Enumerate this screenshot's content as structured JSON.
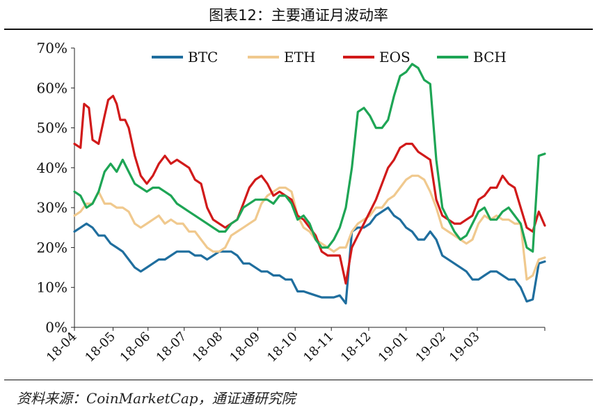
{
  "title": "图表12：主要通证月波动率",
  "source": "资料来源：CoinMarketCap，通证通研究院",
  "chart_data": {
    "type": "line",
    "xlabel": "",
    "ylabel": "",
    "ylim": [
      0,
      70
    ],
    "xlim": [
      0,
      390
    ],
    "x_tick_positions": [
      0,
      32,
      61,
      91,
      121,
      152,
      183,
      213,
      244,
      275,
      306,
      334
    ],
    "x_tick_labels": [
      "18-04",
      "18-05",
      "18-06",
      "18-07",
      "18-08",
      "18-09",
      "18-10",
      "18-11",
      "18-12",
      "19-01",
      "19-02",
      "19-03"
    ],
    "y_ticks": [
      0,
      10,
      20,
      30,
      40,
      50,
      60,
      70
    ],
    "y_tick_labels": [
      "0%",
      "10%",
      "20%",
      "30%",
      "40%",
      "50%",
      "60%",
      "70%"
    ],
    "legend_position": "top",
    "grid": false,
    "series": [
      {
        "name": "BTC",
        "color": "#1F6E9E",
        "points": [
          [
            0,
            24
          ],
          [
            5,
            25
          ],
          [
            10,
            26
          ],
          [
            15,
            25
          ],
          [
            20,
            23
          ],
          [
            25,
            23
          ],
          [
            30,
            21
          ],
          [
            35,
            20
          ],
          [
            40,
            19
          ],
          [
            45,
            17
          ],
          [
            50,
            15
          ],
          [
            55,
            14
          ],
          [
            60,
            15
          ],
          [
            65,
            16
          ],
          [
            70,
            17
          ],
          [
            75,
            17
          ],
          [
            80,
            18
          ],
          [
            85,
            19
          ],
          [
            90,
            19
          ],
          [
            95,
            19
          ],
          [
            100,
            18
          ],
          [
            105,
            18
          ],
          [
            110,
            17
          ],
          [
            115,
            18
          ],
          [
            120,
            19
          ],
          [
            125,
            19
          ],
          [
            130,
            19
          ],
          [
            135,
            18
          ],
          [
            140,
            16
          ],
          [
            145,
            16
          ],
          [
            150,
            15
          ],
          [
            155,
            14
          ],
          [
            160,
            14
          ],
          [
            165,
            13
          ],
          [
            170,
            13
          ],
          [
            175,
            12
          ],
          [
            180,
            12
          ],
          [
            185,
            9
          ],
          [
            190,
            9
          ],
          [
            195,
            8.5
          ],
          [
            200,
            8
          ],
          [
            205,
            7.5
          ],
          [
            210,
            7.5
          ],
          [
            215,
            7.5
          ],
          [
            220,
            8
          ],
          [
            225,
            6
          ],
          [
            230,
            24
          ],
          [
            235,
            25
          ],
          [
            240,
            25
          ],
          [
            245,
            26
          ],
          [
            250,
            28
          ],
          [
            255,
            29
          ],
          [
            260,
            30
          ],
          [
            265,
            28
          ],
          [
            270,
            27
          ],
          [
            275,
            25
          ],
          [
            280,
            24
          ],
          [
            285,
            22
          ],
          [
            290,
            22
          ],
          [
            295,
            24
          ],
          [
            300,
            22
          ],
          [
            305,
            18
          ],
          [
            310,
            17
          ],
          [
            315,
            16
          ],
          [
            320,
            15
          ],
          [
            325,
            14
          ],
          [
            330,
            12
          ],
          [
            335,
            12
          ],
          [
            340,
            13
          ],
          [
            345,
            14
          ],
          [
            350,
            14
          ],
          [
            355,
            13
          ],
          [
            360,
            12
          ],
          [
            365,
            12
          ],
          [
            370,
            10
          ],
          [
            375,
            6.5
          ],
          [
            380,
            7
          ],
          [
            385,
            16
          ],
          [
            390,
            16.5
          ]
        ]
      },
      {
        "name": "ETH",
        "color": "#F0C98E",
        "points": [
          [
            0,
            28
          ],
          [
            5,
            29
          ],
          [
            10,
            31
          ],
          [
            15,
            31
          ],
          [
            20,
            34
          ],
          [
            25,
            31
          ],
          [
            30,
            31
          ],
          [
            35,
            30
          ],
          [
            40,
            30
          ],
          [
            45,
            29
          ],
          [
            50,
            26
          ],
          [
            55,
            25
          ],
          [
            60,
            26
          ],
          [
            65,
            27
          ],
          [
            70,
            28
          ],
          [
            75,
            26
          ],
          [
            80,
            27
          ],
          [
            85,
            26
          ],
          [
            90,
            26
          ],
          [
            95,
            24
          ],
          [
            100,
            24
          ],
          [
            105,
            22
          ],
          [
            110,
            20
          ],
          [
            115,
            19
          ],
          [
            120,
            19
          ],
          [
            125,
            20
          ],
          [
            130,
            23
          ],
          [
            135,
            24
          ],
          [
            140,
            25
          ],
          [
            145,
            26
          ],
          [
            150,
            27
          ],
          [
            155,
            31
          ],
          [
            160,
            33
          ],
          [
            165,
            34
          ],
          [
            170,
            35
          ],
          [
            175,
            35
          ],
          [
            180,
            34
          ],
          [
            185,
            28
          ],
          [
            190,
            25
          ],
          [
            195,
            24
          ],
          [
            200,
            22
          ],
          [
            205,
            21
          ],
          [
            210,
            20
          ],
          [
            215,
            19
          ],
          [
            220,
            20
          ],
          [
            225,
            20
          ],
          [
            230,
            24
          ],
          [
            235,
            26
          ],
          [
            240,
            27
          ],
          [
            245,
            28
          ],
          [
            250,
            30
          ],
          [
            255,
            30
          ],
          [
            260,
            32
          ],
          [
            265,
            33
          ],
          [
            270,
            35
          ],
          [
            275,
            37
          ],
          [
            280,
            38
          ],
          [
            285,
            38
          ],
          [
            290,
            37
          ],
          [
            295,
            34
          ],
          [
            300,
            30
          ],
          [
            305,
            25
          ],
          [
            310,
            24
          ],
          [
            315,
            23
          ],
          [
            320,
            22
          ],
          [
            325,
            21
          ],
          [
            330,
            22
          ],
          [
            335,
            26
          ],
          [
            340,
            28
          ],
          [
            345,
            27
          ],
          [
            350,
            28
          ],
          [
            355,
            27
          ],
          [
            360,
            27
          ],
          [
            365,
            26
          ],
          [
            370,
            26
          ],
          [
            375,
            12
          ],
          [
            380,
            13
          ],
          [
            385,
            17
          ],
          [
            390,
            17.5
          ]
        ]
      },
      {
        "name": "EOS",
        "color": "#D11A1A",
        "points": [
          [
            0,
            46
          ],
          [
            5,
            45
          ],
          [
            8,
            56
          ],
          [
            12,
            55
          ],
          [
            15,
            47
          ],
          [
            20,
            46
          ],
          [
            25,
            53
          ],
          [
            28,
            57
          ],
          [
            32,
            58
          ],
          [
            35,
            56
          ],
          [
            38,
            52
          ],
          [
            42,
            52
          ],
          [
            45,
            50
          ],
          [
            50,
            43
          ],
          [
            55,
            38
          ],
          [
            60,
            36
          ],
          [
            65,
            38
          ],
          [
            70,
            41
          ],
          [
            75,
            43
          ],
          [
            80,
            41
          ],
          [
            85,
            42
          ],
          [
            90,
            41
          ],
          [
            95,
            40
          ],
          [
            100,
            37
          ],
          [
            105,
            36
          ],
          [
            110,
            30
          ],
          [
            115,
            27
          ],
          [
            120,
            26
          ],
          [
            125,
            25
          ],
          [
            130,
            26
          ],
          [
            135,
            27
          ],
          [
            140,
            31
          ],
          [
            145,
            35
          ],
          [
            150,
            37
          ],
          [
            155,
            38
          ],
          [
            160,
            36
          ],
          [
            165,
            33
          ],
          [
            170,
            34
          ],
          [
            175,
            33
          ],
          [
            180,
            32
          ],
          [
            185,
            28
          ],
          [
            190,
            27
          ],
          [
            195,
            25
          ],
          [
            200,
            23
          ],
          [
            205,
            19
          ],
          [
            210,
            18
          ],
          [
            215,
            18
          ],
          [
            220,
            18
          ],
          [
            225,
            11
          ],
          [
            230,
            20
          ],
          [
            235,
            23
          ],
          [
            240,
            26
          ],
          [
            245,
            29
          ],
          [
            250,
            32
          ],
          [
            255,
            36
          ],
          [
            260,
            40
          ],
          [
            265,
            42
          ],
          [
            270,
            45
          ],
          [
            275,
            46
          ],
          [
            280,
            46
          ],
          [
            285,
            44
          ],
          [
            290,
            43
          ],
          [
            295,
            42
          ],
          [
            300,
            32
          ],
          [
            305,
            28
          ],
          [
            310,
            27
          ],
          [
            315,
            26
          ],
          [
            320,
            26
          ],
          [
            325,
            27
          ],
          [
            330,
            28
          ],
          [
            335,
            32
          ],
          [
            340,
            33
          ],
          [
            345,
            35
          ],
          [
            350,
            35
          ],
          [
            355,
            38
          ],
          [
            360,
            36
          ],
          [
            365,
            35
          ],
          [
            370,
            30
          ],
          [
            375,
            25
          ],
          [
            380,
            24
          ],
          [
            385,
            29
          ],
          [
            390,
            25.5
          ]
        ]
      },
      {
        "name": "BCH",
        "color": "#1EA555",
        "points": [
          [
            0,
            34
          ],
          [
            5,
            33
          ],
          [
            10,
            30
          ],
          [
            15,
            31
          ],
          [
            20,
            34
          ],
          [
            25,
            39
          ],
          [
            30,
            41
          ],
          [
            35,
            39
          ],
          [
            40,
            42
          ],
          [
            45,
            39
          ],
          [
            50,
            36
          ],
          [
            55,
            35
          ],
          [
            60,
            34
          ],
          [
            65,
            35
          ],
          [
            70,
            35
          ],
          [
            75,
            34
          ],
          [
            80,
            33
          ],
          [
            85,
            31
          ],
          [
            90,
            30
          ],
          [
            95,
            29
          ],
          [
            100,
            28
          ],
          [
            105,
            27
          ],
          [
            110,
            26
          ],
          [
            115,
            25
          ],
          [
            120,
            24
          ],
          [
            125,
            24
          ],
          [
            130,
            26
          ],
          [
            135,
            27
          ],
          [
            140,
            30
          ],
          [
            145,
            31
          ],
          [
            150,
            32
          ],
          [
            155,
            32
          ],
          [
            160,
            32
          ],
          [
            165,
            31
          ],
          [
            170,
            33
          ],
          [
            175,
            33
          ],
          [
            180,
            31
          ],
          [
            185,
            27
          ],
          [
            190,
            28
          ],
          [
            195,
            26
          ],
          [
            200,
            22
          ],
          [
            205,
            20
          ],
          [
            210,
            20
          ],
          [
            215,
            22
          ],
          [
            220,
            25
          ],
          [
            225,
            30
          ],
          [
            230,
            40
          ],
          [
            235,
            54
          ],
          [
            240,
            55
          ],
          [
            245,
            53
          ],
          [
            250,
            50
          ],
          [
            255,
            50
          ],
          [
            260,
            52
          ],
          [
            265,
            58
          ],
          [
            270,
            63
          ],
          [
            275,
            64
          ],
          [
            280,
            66
          ],
          [
            285,
            65
          ],
          [
            290,
            62
          ],
          [
            295,
            61
          ],
          [
            300,
            42
          ],
          [
            305,
            30
          ],
          [
            310,
            27
          ],
          [
            315,
            24
          ],
          [
            320,
            22
          ],
          [
            325,
            23
          ],
          [
            330,
            26
          ],
          [
            335,
            29
          ],
          [
            340,
            30
          ],
          [
            345,
            27
          ],
          [
            350,
            27
          ],
          [
            355,
            29
          ],
          [
            360,
            30
          ],
          [
            365,
            28
          ],
          [
            370,
            26
          ],
          [
            375,
            20
          ],
          [
            380,
            19
          ],
          [
            385,
            43
          ],
          [
            390,
            43.5
          ]
        ]
      }
    ]
  }
}
